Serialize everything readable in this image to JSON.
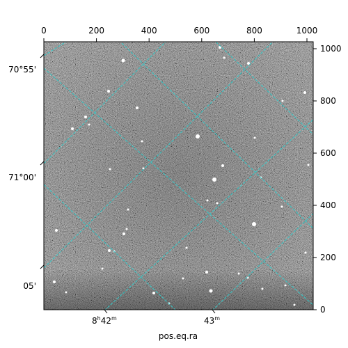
{
  "figure": {
    "xlabel": "pos.eq.ra",
    "top_ticks": [
      "0",
      "200",
      "400",
      "600",
      "800",
      "1000"
    ],
    "right_ticks": [
      "0",
      "200",
      "400",
      "600",
      "800",
      "1000"
    ],
    "left_ticks": [
      "70°55'",
      "71°00'",
      "05'"
    ],
    "bottom_ticks": [
      {
        "main": "8",
        "sup_h": "h",
        "mid": "42",
        "sup_m": "m"
      },
      {
        "main": "43",
        "sup_m": "m"
      }
    ],
    "grid_color": "#36c6c6",
    "image_style": "grayscale star field"
  }
}
